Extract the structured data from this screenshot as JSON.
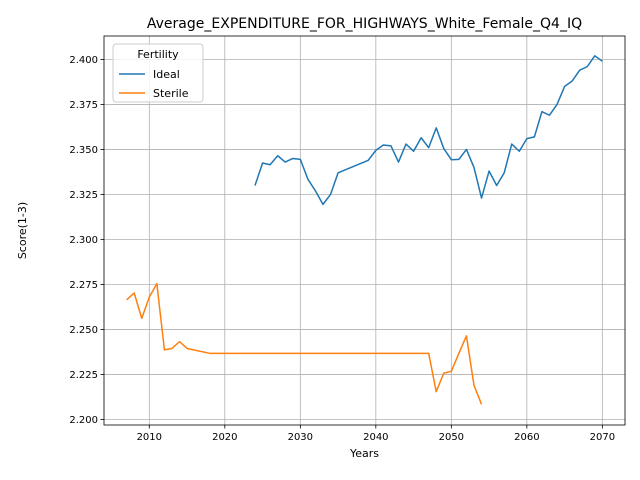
{
  "chart_data": {
    "type": "line",
    "title": "Average_EXPENDITURE_FOR_HIGHWAYS_White_Female_Q4_IQ",
    "xlabel": "Years",
    "ylabel": "Score(1-3)",
    "xlim": [
      2004,
      2073
    ],
    "ylim": [
      2.197,
      2.413
    ],
    "x_ticks": [
      2010,
      2020,
      2030,
      2040,
      2050,
      2060,
      2070
    ],
    "y_ticks": [
      2.2,
      2.225,
      2.25,
      2.275,
      2.3,
      2.325,
      2.35,
      2.375,
      2.4
    ],
    "y_tick_labels": [
      "2.200",
      "2.225",
      "2.250",
      "2.275",
      "2.300",
      "2.325",
      "2.350",
      "2.375",
      "2.400"
    ],
    "grid": true,
    "legend": {
      "title": "Fertility",
      "placement": "upper-left"
    },
    "series": [
      {
        "name": "Ideal",
        "color": "#1f77b4",
        "x": [
          2024,
          2025,
          2026,
          2027,
          2028,
          2029,
          2030,
          2031,
          2032,
          2033,
          2034,
          2035,
          2039,
          2040,
          2041,
          2042,
          2043,
          2044,
          2045,
          2046,
          2047,
          2048,
          2049,
          2050,
          2051,
          2052,
          2053,
          2054,
          2055,
          2056,
          2057,
          2058,
          2059,
          2060,
          2061,
          2062,
          2063,
          2064,
          2065,
          2066,
          2067,
          2068,
          2069,
          2070
        ],
        "y": [
          2.33,
          2.3425,
          2.3415,
          2.3465,
          2.343,
          2.345,
          2.3445,
          2.3335,
          2.327,
          2.3195,
          2.325,
          2.337,
          2.344,
          2.3495,
          2.3525,
          2.352,
          2.343,
          2.353,
          2.349,
          2.3565,
          2.351,
          2.362,
          2.3505,
          2.3443,
          2.3445,
          2.35,
          2.34,
          2.323,
          2.338,
          2.33,
          2.337,
          2.353,
          2.349,
          2.356,
          2.357,
          2.371,
          2.369,
          2.375,
          2.385,
          2.388,
          2.394,
          2.396,
          2.402,
          2.399
        ]
      },
      {
        "name": "Sterile",
        "color": "#ff7f0e",
        "x": [
          2007,
          2008,
          2009,
          2010,
          2011,
          2012,
          2013,
          2014,
          2015,
          2018,
          2047,
          2048,
          2049,
          2050,
          2051,
          2052,
          2053,
          2054
        ],
        "y": [
          2.2665,
          2.2703,
          2.2562,
          2.268,
          2.2755,
          2.2387,
          2.2395,
          2.2433,
          2.2395,
          2.2368,
          2.2368,
          2.2155,
          2.2258,
          2.2268,
          2.2368,
          2.2465,
          2.219,
          2.2085
        ]
      }
    ]
  }
}
